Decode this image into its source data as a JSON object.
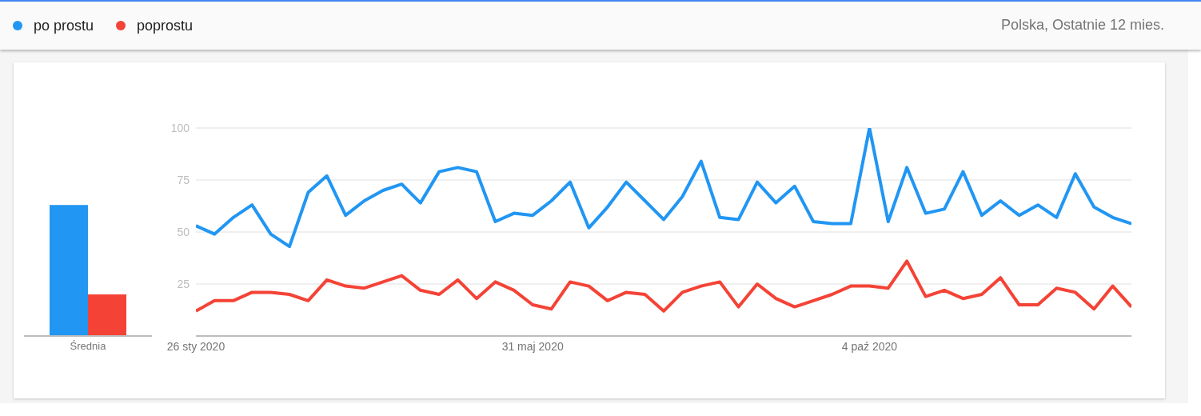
{
  "chart_data": [
    {
      "type": "bar",
      "categories": [
        "Średnia"
      ],
      "series": [
        {
          "color": "#2196f3",
          "values": [
            63
          ]
        },
        {
          "color": "#f44336",
          "values": [
            20
          ]
        }
      ],
      "ylim": [
        0,
        100
      ],
      "tick_labels": "x"
    },
    {
      "type": "line",
      "x": [
        "2020-01-26",
        "2020-02-02",
        "2020-02-09",
        "2020-02-16",
        "2020-02-23",
        "2020-03-01",
        "2020-03-08",
        "2020-03-15",
        "2020-03-22",
        "2020-03-29",
        "2020-04-05",
        "2020-04-12",
        "2020-04-19",
        "2020-04-26",
        "2020-05-03",
        "2020-05-10",
        "2020-05-17",
        "2020-05-24",
        "2020-05-31",
        "2020-06-07",
        "2020-06-14",
        "2020-06-21",
        "2020-06-28",
        "2020-07-05",
        "2020-07-12",
        "2020-07-19",
        "2020-07-26",
        "2020-08-02",
        "2020-08-09",
        "2020-08-16",
        "2020-08-23",
        "2020-08-30",
        "2020-09-06",
        "2020-09-13",
        "2020-09-20",
        "2020-09-27",
        "2020-10-04",
        "2020-10-11",
        "2020-10-18",
        "2020-10-25",
        "2020-11-01",
        "2020-11-08",
        "2020-11-15",
        "2020-11-22",
        "2020-11-29",
        "2020-12-06",
        "2020-12-13",
        "2020-12-20",
        "2020-12-27",
        "2021-01-03",
        "2021-01-10"
      ],
      "series": [
        {
          "name": "po prostu",
          "color": "#2196f3",
          "values": [
            53,
            49,
            57,
            63,
            49,
            43,
            69,
            77,
            58,
            65,
            70,
            73,
            64,
            79,
            81,
            79,
            55,
            59,
            58,
            65,
            74,
            52,
            62,
            74,
            65,
            56,
            67,
            84,
            57,
            56,
            74,
            64,
            72,
            55,
            54,
            54,
            100,
            55,
            81,
            59,
            61,
            79,
            58,
            65,
            58,
            63,
            57,
            78,
            62,
            57,
            54
          ]
        },
        {
          "name": "poprostu",
          "color": "#f44336",
          "values": [
            12,
            17,
            17,
            21,
            21,
            20,
            17,
            27,
            24,
            23,
            26,
            29,
            22,
            20,
            27,
            18,
            26,
            22,
            15,
            13,
            26,
            24,
            17,
            21,
            20,
            12,
            21,
            24,
            26,
            14,
            25,
            18,
            14,
            17,
            20,
            24,
            24,
            23,
            36,
            19,
            22,
            18,
            20,
            28,
            15,
            15,
            23,
            21,
            13,
            24,
            14
          ]
        }
      ],
      "xlim": [
        "2020-01-26",
        "2021-01-10"
      ],
      "xticks": [
        {
          "value": "2020-01-26",
          "label": "26 sty 2020"
        },
        {
          "value": "2020-05-31",
          "label": "31 maj 2020"
        },
        {
          "value": "2020-10-04",
          "label": "4 paź 2020"
        }
      ],
      "ylim": [
        0,
        100
      ],
      "yticks": [
        25,
        50,
        75,
        100
      ],
      "grid": "y",
      "legend": "top left",
      "annotations": [
        "Polska, Ostatnie 12 mies."
      ]
    }
  ]
}
